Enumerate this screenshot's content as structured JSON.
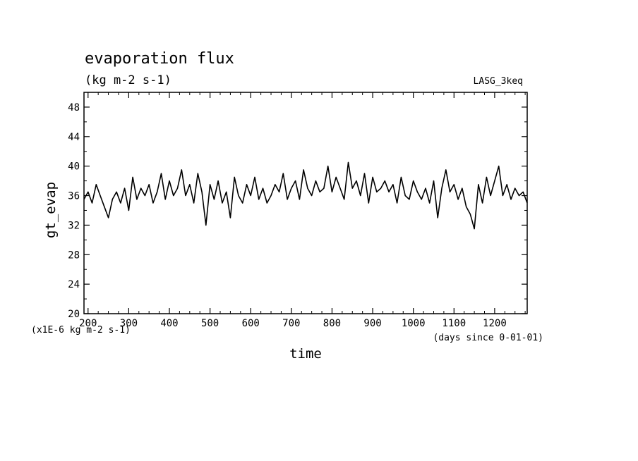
{
  "chart_data": {
    "type": "line",
    "title": "evaporation flux",
    "subtitle": "(kg m-2 s-1)",
    "experiment_label": "LASG_3keq",
    "xlabel": "time",
    "x_unit_note": "(days since 0-01-01)",
    "ylabel": "gt_evap",
    "y_unit_note": "(x1E-6 kg m-2 s-1)",
    "xlim": [
      190,
      1280
    ],
    "ylim": [
      20,
      50
    ],
    "x_ticks": [
      200,
      300,
      400,
      500,
      600,
      700,
      800,
      900,
      1000,
      1100,
      1200
    ],
    "y_ticks": [
      20,
      24,
      28,
      32,
      36,
      40,
      44,
      48
    ],
    "grid": false,
    "series": [
      {
        "color": "#000000",
        "x": [
          190,
          200,
          210,
          220,
          230,
          240,
          250,
          260,
          270,
          280,
          290,
          300,
          310,
          320,
          330,
          340,
          350,
          360,
          370,
          380,
          390,
          400,
          410,
          420,
          430,
          440,
          450,
          460,
          470,
          480,
          490,
          500,
          510,
          520,
          530,
          540,
          550,
          560,
          570,
          580,
          590,
          600,
          610,
          620,
          630,
          640,
          650,
          660,
          670,
          680,
          690,
          700,
          710,
          720,
          730,
          740,
          750,
          760,
          770,
          780,
          790,
          800,
          810,
          820,
          830,
          840,
          850,
          860,
          870,
          880,
          890,
          900,
          910,
          920,
          930,
          940,
          950,
          960,
          970,
          980,
          990,
          1000,
          1010,
          1020,
          1030,
          1040,
          1050,
          1060,
          1070,
          1080,
          1090,
          1100,
          1110,
          1120,
          1130,
          1140,
          1150,
          1160,
          1170,
          1180,
          1190,
          1200,
          1210,
          1220,
          1230,
          1240,
          1250,
          1260,
          1270,
          1280
        ],
        "y": [
          35.5,
          36.5,
          35.0,
          37.5,
          36.0,
          34.5,
          33.0,
          35.5,
          36.5,
          35.0,
          37.0,
          34.0,
          38.5,
          35.5,
          37.0,
          36.0,
          37.5,
          35.0,
          36.5,
          39.0,
          35.5,
          38.0,
          36.0,
          37.0,
          39.5,
          36.0,
          37.5,
          35.0,
          39.0,
          36.5,
          32.0,
          37.5,
          35.5,
          38.0,
          35.0,
          36.5,
          33.0,
          38.5,
          36.0,
          35.0,
          37.5,
          36.0,
          38.5,
          35.5,
          37.0,
          35.0,
          36.0,
          37.5,
          36.5,
          39.0,
          35.5,
          37.0,
          38.0,
          35.5,
          39.5,
          37.0,
          36.0,
          38.0,
          36.5,
          37.0,
          40.0,
          36.5,
          38.5,
          37.0,
          35.5,
          40.5,
          37.0,
          38.0,
          36.0,
          39.0,
          35.0,
          38.5,
          36.5,
          37.0,
          38.0,
          36.5,
          37.5,
          35.0,
          38.5,
          36.0,
          35.5,
          38.0,
          36.5,
          35.5,
          37.0,
          35.0,
          38.0,
          33.0,
          37.0,
          39.5,
          36.5,
          37.5,
          35.5,
          37.0,
          34.5,
          33.5,
          31.5,
          37.5,
          35.0,
          38.5,
          36.0,
          38.0,
          40.0,
          36.0,
          37.5,
          35.5,
          37.0,
          36.0,
          36.5,
          35.0
        ]
      }
    ]
  }
}
